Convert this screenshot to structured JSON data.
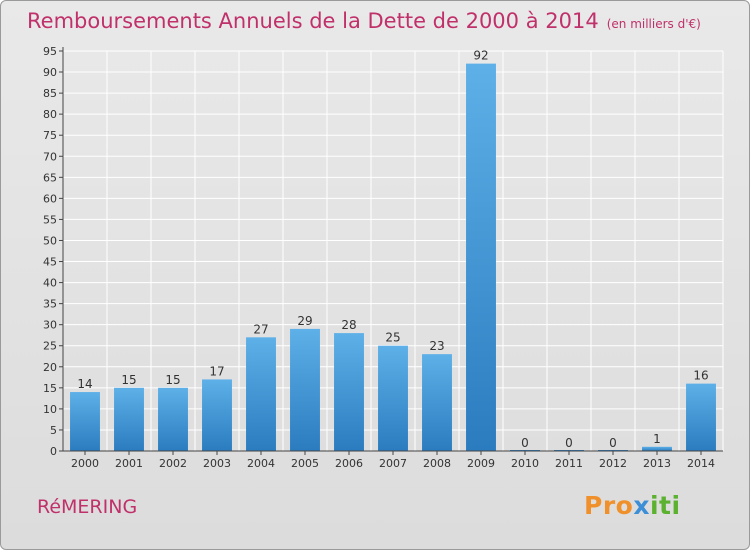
{
  "header": {
    "title": "Remboursements Annuels de la Dette de 2000 à 2014",
    "unit": "(en milliers d'€)"
  },
  "footer": {
    "commune": "RéMERING",
    "logo_parts": [
      "Pro",
      "x",
      "iti"
    ]
  },
  "colors": {
    "title": "#c0306a",
    "bar_light": "#5eb0e8",
    "bar_dark": "#2a7cbf",
    "axis": "#444444",
    "grid": "#ffffff"
  },
  "chart_data": {
    "type": "bar",
    "title": "Remboursements Annuels de la Dette de 2000 à 2014",
    "ylabel": "",
    "xlabel": "",
    "categories": [
      "2000",
      "2001",
      "2002",
      "2003",
      "2004",
      "2005",
      "2006",
      "2007",
      "2008",
      "2009",
      "2010",
      "2011",
      "2012",
      "2013",
      "2014"
    ],
    "values": [
      14,
      15,
      15,
      17,
      27,
      29,
      28,
      25,
      23,
      92,
      0,
      0,
      0,
      1,
      16
    ],
    "ylim": [
      0,
      95
    ],
    "ytick_step": 5,
    "grid": true
  }
}
